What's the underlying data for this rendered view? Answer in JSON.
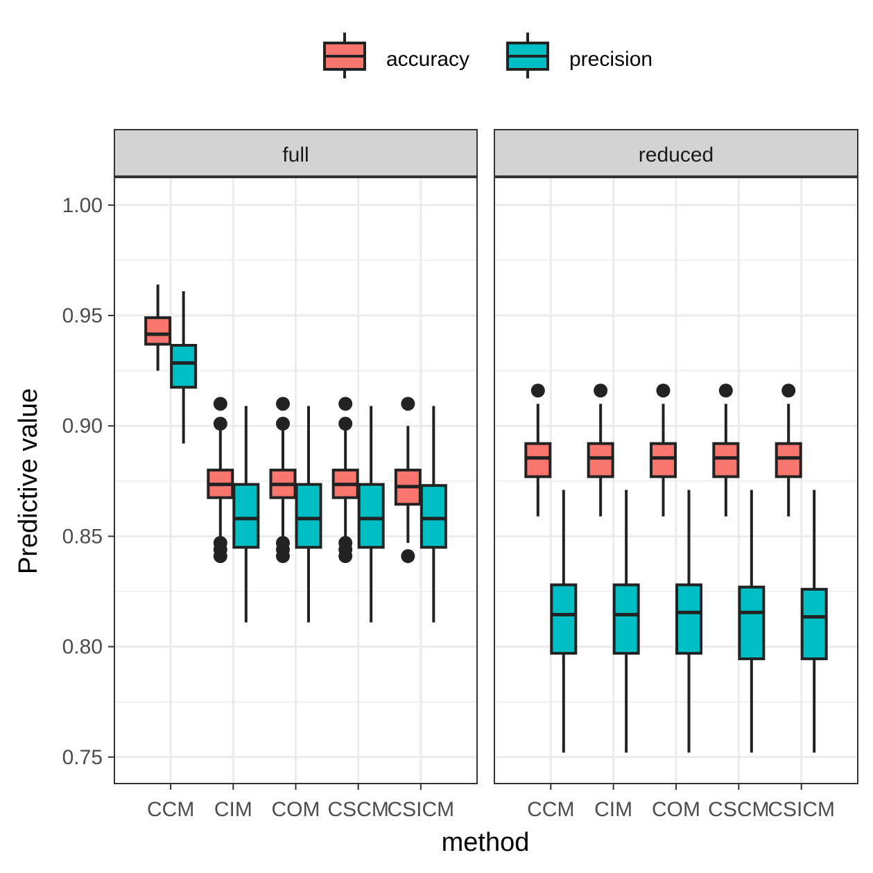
{
  "chart_data": {
    "type": "boxplot",
    "xlabel": "method",
    "ylabel": "Predictive value",
    "ylim": [
      0.738,
      1.0125
    ],
    "yticks": [
      "0.75",
      "0.80",
      "0.85",
      "0.90",
      "0.95",
      "1.00"
    ],
    "ytick_values": [
      0.75,
      0.8,
      0.85,
      0.9,
      0.95,
      1.0
    ],
    "categories": [
      "CCM",
      "CIM",
      "COM",
      "CSCM",
      "CSICM"
    ],
    "legend": {
      "position": "top",
      "entries": [
        {
          "name": "accuracy",
          "color": "#F8766D"
        },
        {
          "name": "precision",
          "color": "#00BFC4"
        }
      ]
    },
    "grid": true,
    "panels": [
      {
        "name": "full",
        "series": [
          {
            "name": "accuracy",
            "color": "#F8766D",
            "boxes": [
              {
                "category": "CCM",
                "whisker_low": 0.925,
                "q1": 0.937,
                "median": 0.9415,
                "q3": 0.949,
                "whisker_high": 0.964,
                "outliers": []
              },
              {
                "category": "CIM",
                "whisker_low": 0.849,
                "q1": 0.8675,
                "median": 0.8735,
                "q3": 0.88,
                "whisker_high": 0.9,
                "outliers": [
                  0.91,
                  0.901,
                  0.847,
                  0.844,
                  0.841
                ]
              },
              {
                "category": "COM",
                "whisker_low": 0.849,
                "q1": 0.8675,
                "median": 0.8735,
                "q3": 0.88,
                "whisker_high": 0.9,
                "outliers": [
                  0.91,
                  0.901,
                  0.847,
                  0.844,
                  0.841
                ]
              },
              {
                "category": "CSCM",
                "whisker_low": 0.849,
                "q1": 0.8675,
                "median": 0.8735,
                "q3": 0.88,
                "whisker_high": 0.9,
                "outliers": [
                  0.91,
                  0.901,
                  0.847,
                  0.844,
                  0.841
                ]
              },
              {
                "category": "CSICM",
                "whisker_low": 0.847,
                "q1": 0.8645,
                "median": 0.8725,
                "q3": 0.88,
                "whisker_high": 0.9,
                "outliers": [
                  0.91,
                  0.841
                ]
              }
            ]
          },
          {
            "name": "precision",
            "color": "#00BFC4",
            "boxes": [
              {
                "category": "CCM",
                "whisker_low": 0.892,
                "q1": 0.9175,
                "median": 0.9285,
                "q3": 0.9365,
                "whisker_high": 0.961,
                "outliers": []
              },
              {
                "category": "CIM",
                "whisker_low": 0.811,
                "q1": 0.845,
                "median": 0.858,
                "q3": 0.8735,
                "whisker_high": 0.909,
                "outliers": []
              },
              {
                "category": "COM",
                "whisker_low": 0.811,
                "q1": 0.845,
                "median": 0.858,
                "q3": 0.8735,
                "whisker_high": 0.909,
                "outliers": []
              },
              {
                "category": "CSCM",
                "whisker_low": 0.811,
                "q1": 0.845,
                "median": 0.858,
                "q3": 0.8735,
                "whisker_high": 0.909,
                "outliers": []
              },
              {
                "category": "CSICM",
                "whisker_low": 0.811,
                "q1": 0.845,
                "median": 0.858,
                "q3": 0.873,
                "whisker_high": 0.909,
                "outliers": []
              }
            ]
          }
        ]
      },
      {
        "name": "reduced",
        "series": [
          {
            "name": "accuracy",
            "color": "#F8766D",
            "boxes": [
              {
                "category": "CCM",
                "whisker_low": 0.859,
                "q1": 0.877,
                "median": 0.8855,
                "q3": 0.892,
                "whisker_high": 0.91,
                "outliers": [
                  0.916
                ]
              },
              {
                "category": "CIM",
                "whisker_low": 0.859,
                "q1": 0.877,
                "median": 0.8855,
                "q3": 0.892,
                "whisker_high": 0.91,
                "outliers": [
                  0.916
                ]
              },
              {
                "category": "COM",
                "whisker_low": 0.859,
                "q1": 0.877,
                "median": 0.8855,
                "q3": 0.892,
                "whisker_high": 0.91,
                "outliers": [
                  0.916
                ]
              },
              {
                "category": "CSCM",
                "whisker_low": 0.859,
                "q1": 0.877,
                "median": 0.8855,
                "q3": 0.892,
                "whisker_high": 0.91,
                "outliers": [
                  0.916
                ]
              },
              {
                "category": "CSICM",
                "whisker_low": 0.859,
                "q1": 0.877,
                "median": 0.8855,
                "q3": 0.892,
                "whisker_high": 0.91,
                "outliers": [
                  0.916
                ]
              }
            ]
          },
          {
            "name": "precision",
            "color": "#00BFC4",
            "boxes": [
              {
                "category": "CCM",
                "whisker_low": 0.752,
                "q1": 0.797,
                "median": 0.8145,
                "q3": 0.828,
                "whisker_high": 0.871,
                "outliers": []
              },
              {
                "category": "CIM",
                "whisker_low": 0.752,
                "q1": 0.797,
                "median": 0.8145,
                "q3": 0.828,
                "whisker_high": 0.871,
                "outliers": []
              },
              {
                "category": "COM",
                "whisker_low": 0.752,
                "q1": 0.797,
                "median": 0.8155,
                "q3": 0.828,
                "whisker_high": 0.871,
                "outliers": []
              },
              {
                "category": "CSCM",
                "whisker_low": 0.752,
                "q1": 0.7945,
                "median": 0.8155,
                "q3": 0.827,
                "whisker_high": 0.871,
                "outliers": []
              },
              {
                "category": "CSICM",
                "whisker_low": 0.752,
                "q1": 0.7945,
                "median": 0.8135,
                "q3": 0.826,
                "whisker_high": 0.871,
                "outliers": []
              }
            ]
          }
        ]
      }
    ]
  }
}
